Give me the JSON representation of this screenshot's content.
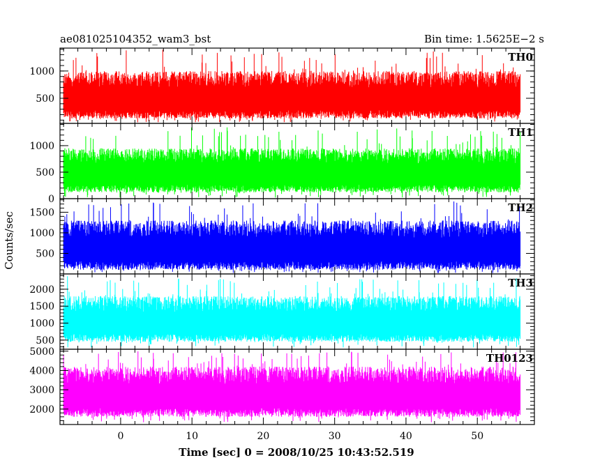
{
  "chart_data": {
    "type": "line",
    "title_left": "ae081025104352_wam3_bst",
    "title_right": "Bin time: 1.5625E−2 s",
    "xlabel": "Time [sec] 0 = 2008/10/25 10:43:52.519",
    "ylabel": "Counts/sec",
    "xlim": [
      -8.5,
      58
    ],
    "x_ticks": [
      0,
      10,
      20,
      30,
      40,
      50
    ],
    "x_tick_labels": [
      "0",
      "10",
      "20",
      "30",
      "40",
      "50"
    ],
    "series_x_range": [
      -8,
      56
    ],
    "bin_time": 0.015625,
    "grid": false,
    "panels": [
      {
        "label": "TH0",
        "color": "#ff0000",
        "ylim": [
          40,
          1420
        ],
        "y_ticks": [
          500,
          1000
        ],
        "y_tick_labels": [
          "500",
          "1000"
        ],
        "envelope": {
          "low": 130,
          "high": 1000,
          "max_peak": 1410,
          "min_dip": 60
        }
      },
      {
        "label": "TH1",
        "color": "#00ff00",
        "ylim": [
          0,
          1420
        ],
        "y_ticks": [
          0,
          500,
          1000
        ],
        "y_tick_labels": [
          "0",
          "500",
          "1000"
        ],
        "envelope": {
          "low": 120,
          "high": 950,
          "max_peak": 1350,
          "min_dip": 20
        }
      },
      {
        "label": "TH2",
        "color": "#0000ff",
        "ylim": [
          0,
          1830
        ],
        "y_ticks": [
          500,
          1000,
          1500
        ],
        "y_tick_labels": [
          "500",
          "1000",
          "1500"
        ],
        "envelope": {
          "low": 100,
          "high": 1300,
          "max_peak": 1780,
          "min_dip": 20
        }
      },
      {
        "label": "TH3",
        "color": "#00ffff",
        "ylim": [
          230,
          2450
        ],
        "y_ticks": [
          500,
          1000,
          1500,
          2000
        ],
        "y_tick_labels": [
          "500",
          "1000",
          "1500",
          "2000"
        ],
        "envelope": {
          "low": 450,
          "high": 1800,
          "max_peak": 2420,
          "min_dip": 280
        }
      },
      {
        "label": "TH0123",
        "color": "#ff00ff",
        "ylim": [
          1200,
          5100
        ],
        "y_ticks": [
          2000,
          3000,
          4000,
          5000
        ],
        "y_tick_labels": [
          "2000",
          "3000",
          "4000",
          "5000"
        ],
        "envelope": {
          "low": 1600,
          "high": 4200,
          "max_peak": 5050,
          "min_dip": 1300
        }
      }
    ]
  }
}
